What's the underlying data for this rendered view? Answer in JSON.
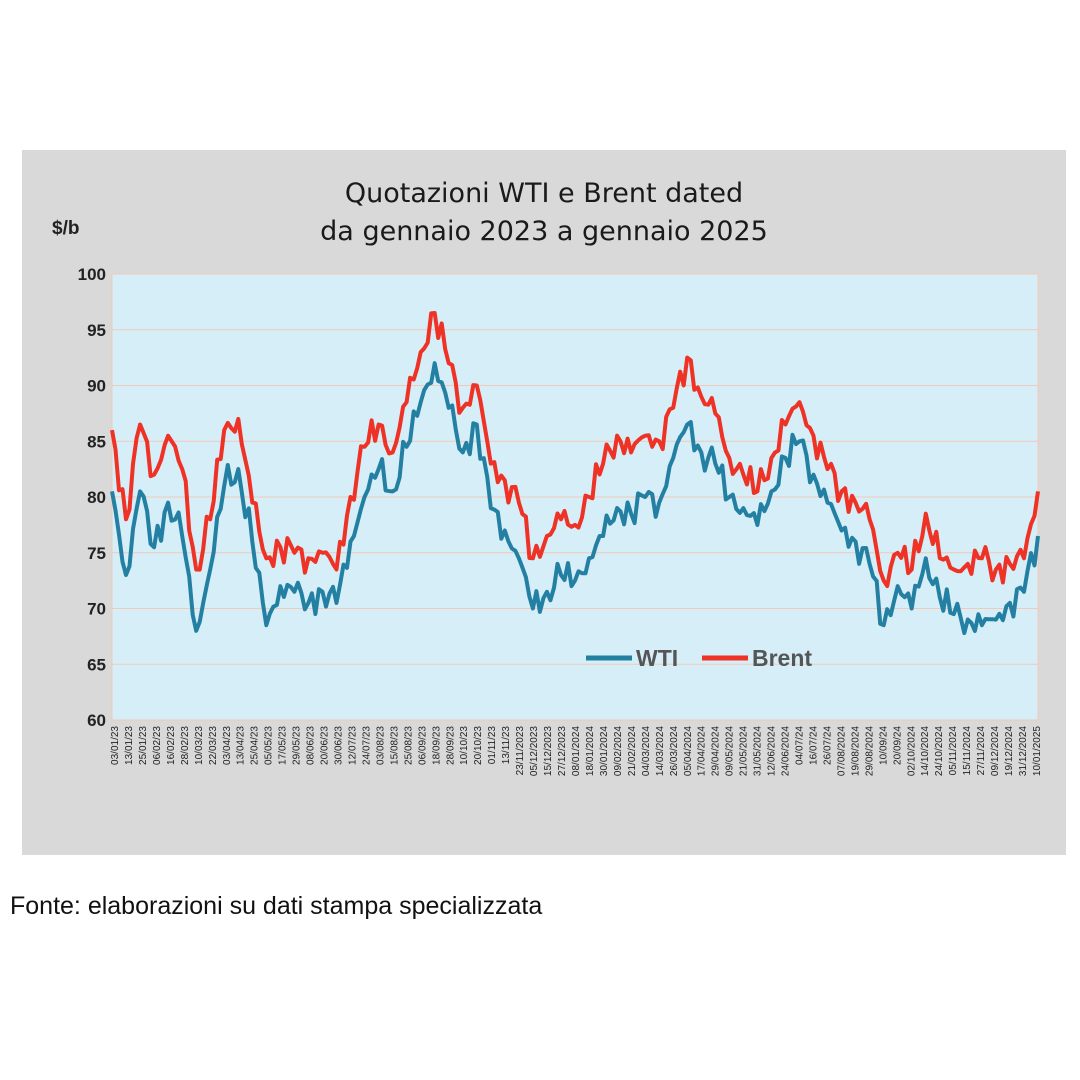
{
  "source_note": "Fonte: elaborazioni su dati stampa specializzata",
  "colors": {
    "wti": "#2380a3",
    "brent": "#ee3225",
    "plot_bg": "#d5eef8",
    "frame_bg": "#d9d9d9",
    "grid": "#f2c9b9"
  },
  "chart_data": {
    "type": "line",
    "title": [
      "Quotazioni WTI e Brent dated",
      "da gennaio 2023 a gennaio 2025"
    ],
    "ylabel": "$/b",
    "xlabel": "",
    "ylim": [
      60,
      100
    ],
    "yticks": [
      60,
      65,
      70,
      75,
      80,
      85,
      90,
      95,
      100
    ],
    "grid": true,
    "legend": {
      "placement": "lower-center",
      "entries": [
        "WTI",
        "Brent"
      ]
    },
    "x_tick_labels": [
      "03/01/23",
      "13/01/23",
      "25/01/23",
      "06/02/23",
      "16/02/23",
      "28/02/23",
      "10/03/23",
      "22/03/23",
      "03/04/23",
      "13/04/23",
      "25/04/23",
      "05/05/23",
      "17/05/23",
      "29/05/23",
      "08/06/23",
      "20/06/23",
      "30/06/23",
      "12/07/23",
      "24/07/23",
      "03/08/23",
      "15/08/23",
      "25/08/23",
      "06/09/23",
      "18/09/23",
      "28/09/23",
      "10/10/23",
      "20/10/23",
      "01/11/23",
      "13/11/23",
      "23/11/2023",
      "05/12/2023",
      "15/12/2023",
      "27/12/2023",
      "08/01/2024",
      "18/01/2024",
      "30/01/2024",
      "09/02/2024",
      "21/02/2024",
      "04/03/2024",
      "14/03/2024",
      "26/03/2024",
      "05/04/2024",
      "17/04/2024",
      "29/04/2024",
      "09/05/2024",
      "21/05/2024",
      "31/05/2024",
      "12/06/2024",
      "24/06/2024",
      "04/07/24",
      "16/07/24",
      "26/07/24",
      "07/08/2024",
      "19/08/2024",
      "29/08/2024",
      "10/09/24",
      "20/09/24",
      "02/10/2024",
      "14/10/2024",
      "24/10/2024",
      "05/11/2024",
      "15/11/2024",
      "27/11/2024",
      "09/12/2024",
      "19/12/2024",
      "31/12/2024",
      "10/01/2025"
    ],
    "x": [
      "03/01/23",
      "13/01/23",
      "25/01/23",
      "06/02/23",
      "16/02/23",
      "28/02/23",
      "10/03/23",
      "22/03/23",
      "03/04/23",
      "13/04/23",
      "25/04/23",
      "05/05/23",
      "17/05/23",
      "29/05/23",
      "08/06/23",
      "20/06/23",
      "30/06/23",
      "12/07/23",
      "24/07/23",
      "03/08/23",
      "15/08/23",
      "25/08/23",
      "06/09/23",
      "18/09/23",
      "28/09/23",
      "10/10/23",
      "20/10/23",
      "01/11/23",
      "13/11/23",
      "23/11/2023",
      "05/12/2023",
      "15/12/2023",
      "27/12/2023",
      "08/01/2024",
      "18/01/2024",
      "30/01/2024",
      "09/02/2024",
      "21/02/2024",
      "04/03/2024",
      "14/03/2024",
      "26/03/2024",
      "05/04/2024",
      "17/04/2024",
      "29/04/2024",
      "09/05/2024",
      "21/05/2024",
      "31/05/2024",
      "12/06/2024",
      "24/06/2024",
      "04/07/24",
      "16/07/24",
      "26/07/24",
      "07/08/2024",
      "19/08/2024",
      "29/08/2024",
      "10/09/24",
      "20/09/24",
      "02/10/2024",
      "14/10/2024",
      "24/10/2024",
      "05/11/2024",
      "15/11/2024",
      "27/11/2024",
      "09/12/2024",
      "19/12/2024",
      "31/12/2024",
      "10/01/2025"
    ],
    "series": [
      {
        "name": "WTI",
        "color": "#2380a3",
        "values": [
          80.5,
          73.0,
          80.5,
          75.5,
          79.5,
          76.5,
          68.0,
          73.5,
          81.0,
          82.5,
          76.0,
          68.5,
          72.0,
          71.5,
          70.5,
          71.5,
          70.5,
          76.0,
          80.0,
          82.5,
          80.5,
          84.5,
          88.5,
          92.0,
          88.0,
          84.0,
          86.5,
          79.0,
          77.0,
          74.5,
          70.0,
          71.5,
          73.0,
          72.5,
          74.5,
          76.5,
          79.0,
          78.5,
          80.0,
          79.5,
          83.5,
          86.5,
          84.0,
          83.0,
          80.0,
          79.0,
          77.5,
          80.5,
          83.5,
          85.0,
          82.0,
          79.5,
          77.0,
          76.0,
          74.0,
          68.5,
          72.0,
          70.0,
          74.5,
          71.0,
          69.5,
          69.0,
          68.5,
          69.0,
          70.5,
          71.5,
          76.5
        ]
      },
      {
        "name": "Brent",
        "color": "#ee3225",
        "values": [
          86.0,
          78.0,
          86.5,
          82.0,
          85.5,
          82.5,
          73.5,
          78.0,
          86.0,
          87.0,
          79.5,
          74.5,
          75.5,
          75.0,
          74.5,
          75.0,
          73.5,
          80.0,
          84.5,
          86.5,
          84.0,
          88.5,
          93.0,
          96.5,
          92.0,
          88.0,
          90.0,
          83.0,
          81.5,
          79.5,
          74.5,
          76.5,
          78.0,
          77.5,
          80.0,
          83.0,
          85.5,
          84.0,
          85.5,
          85.0,
          88.0,
          92.5,
          89.0,
          87.5,
          83.5,
          82.0,
          80.5,
          83.5,
          86.5,
          88.5,
          85.5,
          82.5,
          80.5,
          79.5,
          78.0,
          72.5,
          75.0,
          73.5,
          78.5,
          74.5,
          73.5,
          74.0,
          74.5,
          73.5,
          74.0,
          74.5,
          80.5
        ]
      }
    ]
  }
}
